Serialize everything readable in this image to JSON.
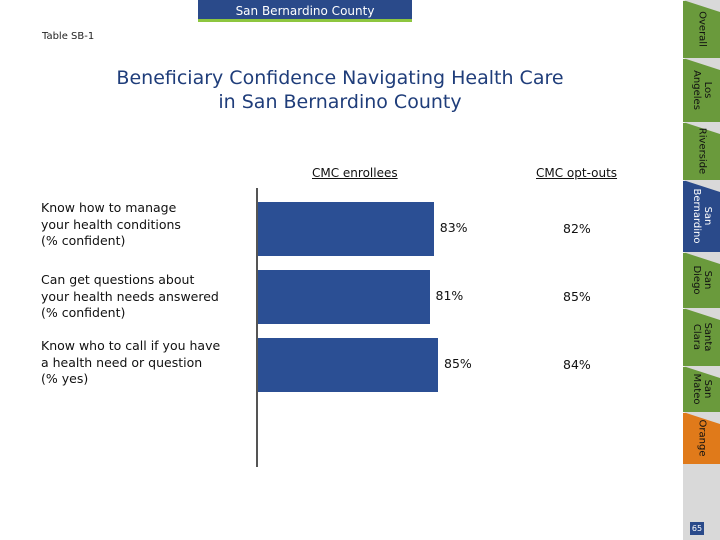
{
  "header": {
    "banner": "San Bernardino County",
    "table_label": "Table SB-1",
    "title_line1": "Beneficiary Confidence Navigating Health Care",
    "title_line2": "in San Bernardino County"
  },
  "chart_data": {
    "type": "bar",
    "title": "Beneficiary Confidence Navigating Health Care in San Bernardino County",
    "categories": [
      "Know how to manage your health conditions (% confident)",
      "Can get questions about your health needs answered (% confident)",
      "Know who to call if you have a health need or question (% yes)"
    ],
    "category_lines": [
      [
        "Know how to manage",
        "your health conditions",
        "(% confident)"
      ],
      [
        "Can get questions about",
        "your health needs answered",
        "(% confident)"
      ],
      [
        "Know who to call if you have",
        "a health need or question",
        "(% yes)"
      ]
    ],
    "series": [
      {
        "name": "CMC enrollees",
        "values": [
          83,
          81,
          85
        ],
        "labels": [
          "83%",
          "81%",
          "85%"
        ],
        "color": "#2b4f94"
      },
      {
        "name": "CMC opt-outs",
        "values": [
          82,
          85,
          84
        ],
        "labels": [
          "82%",
          "85%",
          "84%"
        ]
      }
    ],
    "xlim": [
      0,
      100
    ],
    "xlabel": "",
    "ylabel": ""
  },
  "sidebar": {
    "tabs": [
      {
        "label": "Overall"
      },
      {
        "label": "Los\nAngeles"
      },
      {
        "label": "Riverside"
      },
      {
        "label": "San\nBernardino",
        "active": true
      },
      {
        "label": "San\nDiego"
      },
      {
        "label": "Santa\nClara"
      },
      {
        "label": "San\nMateo"
      },
      {
        "label": "Orange"
      }
    ]
  },
  "page_number": "65",
  "colors": {
    "bar": "#2b4f94",
    "banner": "#2a4a8a",
    "tab": "#6a9a3c",
    "orange": "#e07a1a",
    "accent": "#8dc63f"
  }
}
